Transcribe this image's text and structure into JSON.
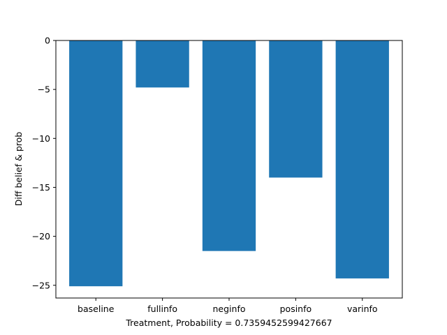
{
  "chart_data": {
    "type": "bar",
    "categories": [
      "baseline",
      "fullinfo",
      "neginfo",
      "posinfo",
      "varinfo"
    ],
    "values": [
      -25.1,
      -4.8,
      -21.5,
      -14.0,
      -24.3
    ],
    "xlabel": "Treatment, Probability = 0.7359452599427667",
    "ylabel": "Diff belief & prob",
    "ylim": [
      -26.3,
      0
    ],
    "yticks": [
      0,
      -5,
      -10,
      -15,
      -20,
      -25
    ],
    "ytick_labels": [
      "0",
      "−5",
      "−10",
      "−15",
      "−20",
      "−25"
    ],
    "bar_color": "#1f77b4",
    "grid": false
  }
}
